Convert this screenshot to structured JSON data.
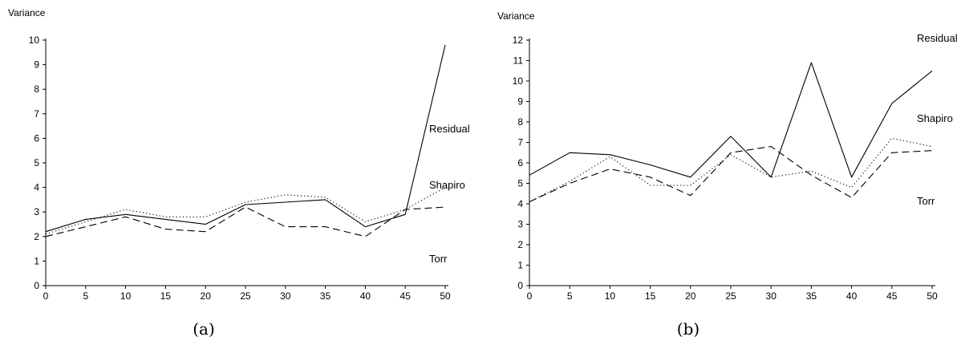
{
  "chart_data": [
    {
      "type": "line",
      "caption": "(a)",
      "ylabel": "Variance",
      "xlabel": "",
      "x": [
        0,
        5,
        10,
        15,
        20,
        25,
        30,
        35,
        40,
        45,
        50
      ],
      "xticks": [
        "0",
        "5",
        "10",
        "15",
        "20",
        "25",
        "30",
        "35",
        "40",
        "45",
        "50"
      ],
      "yticks": [
        "0",
        "1",
        "2",
        "3",
        "4",
        "5",
        "6",
        "7",
        "8",
        "9",
        "10"
      ],
      "xlim": [
        0,
        50
      ],
      "ylim": [
        0,
        10
      ],
      "grid": false,
      "series": [
        {
          "name": "Residual",
          "style": "solid",
          "values": [
            2.2,
            2.7,
            2.9,
            2.7,
            2.5,
            3.3,
            3.4,
            3.5,
            2.4,
            2.9,
            9.8
          ]
        },
        {
          "name": "Shapiro",
          "style": "dotted",
          "values": [
            2.1,
            2.6,
            3.1,
            2.8,
            2.8,
            3.4,
            3.7,
            3.6,
            2.6,
            3.1,
            4.0
          ]
        },
        {
          "name": "Torr",
          "style": "dashed",
          "values": [
            2.0,
            2.4,
            2.8,
            2.3,
            2.2,
            3.2,
            2.4,
            2.4,
            2.0,
            3.1,
            3.2
          ]
        }
      ]
    },
    {
      "type": "line",
      "caption": "(b)",
      "ylabel": "Variance",
      "xlabel": "",
      "x": [
        0,
        5,
        10,
        15,
        20,
        25,
        30,
        35,
        40,
        45,
        50
      ],
      "xticks": [
        "0",
        "5",
        "10",
        "15",
        "20",
        "25",
        "30",
        "35",
        "40",
        "45",
        "50"
      ],
      "yticks": [
        "0",
        "1",
        "2",
        "3",
        "4",
        "5",
        "6",
        "7",
        "8",
        "9",
        "10",
        "11",
        "12"
      ],
      "xlim": [
        0,
        50
      ],
      "ylim": [
        0,
        12
      ],
      "grid": false,
      "series": [
        {
          "name": "Residual",
          "style": "solid",
          "values": [
            5.4,
            6.5,
            6.4,
            5.9,
            5.3,
            7.3,
            5.3,
            10.9,
            5.3,
            8.9,
            10.5
          ]
        },
        {
          "name": "Shapiro",
          "style": "dotted",
          "values": [
            4.1,
            5.1,
            6.3,
            4.9,
            4.9,
            6.4,
            5.3,
            5.6,
            4.8,
            7.2,
            6.8
          ]
        },
        {
          "name": "Torr",
          "style": "dashed",
          "values": [
            4.1,
            5.0,
            5.7,
            5.3,
            4.4,
            6.5,
            6.8,
            5.4,
            4.3,
            6.5,
            6.6
          ]
        }
      ]
    }
  ]
}
